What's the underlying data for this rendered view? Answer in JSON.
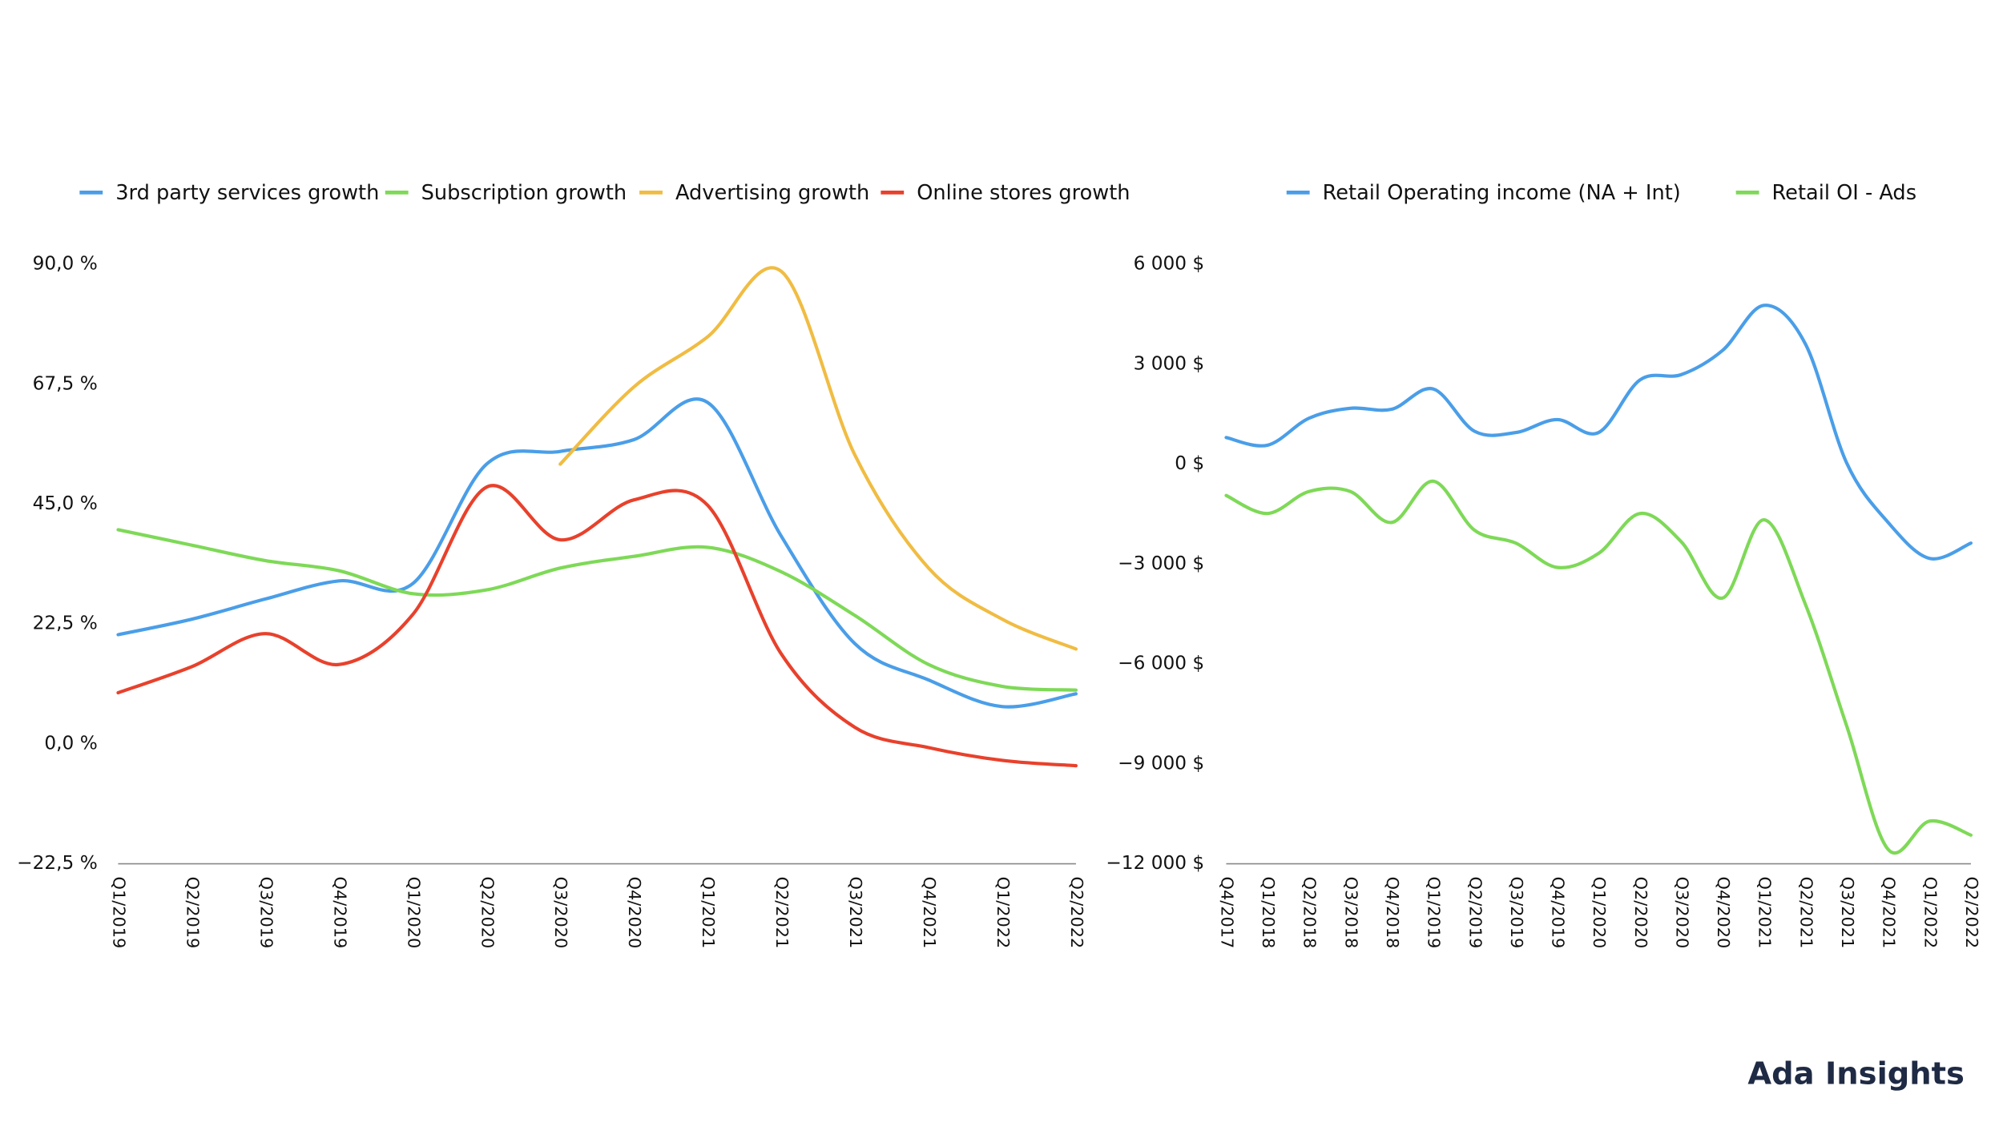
{
  "chart_data": [
    {
      "type": "line",
      "categories": [
        "Q1/2019",
        "Q2/2019",
        "Q3/2019",
        "Q4/2019",
        "Q1/2020",
        "Q2/2020",
        "Q3/2020",
        "Q4/2020",
        "Q1/2021",
        "Q2/2021",
        "Q3/2021",
        "Q4/2021",
        "Q1/2022",
        "Q2/2022"
      ],
      "series": [
        {
          "name": "3rd party services growth",
          "color": "#4a9ee8",
          "values": [
            20.5,
            23.4,
            27.2,
            30.6,
            30.1,
            52.5,
            54.9,
            57.1,
            64.1,
            39.0,
            18.8,
            12.0,
            7.0,
            9.4
          ]
        },
        {
          "name": "Subscription growth",
          "color": "#7ed957",
          "values": [
            40.2,
            37.3,
            34.4,
            32.5,
            28.2,
            28.9,
            33.0,
            35.2,
            36.9,
            32.3,
            24.1,
            14.9,
            10.8,
            10.1
          ]
        },
        {
          "name": "Advertising growth",
          "color": "#f0bc42",
          "values": [
            null,
            null,
            null,
            null,
            null,
            null,
            52.5,
            67.0,
            76.4,
            88.7,
            54.2,
            33.0,
            23.4,
            17.8
          ]
        },
        {
          "name": "Online stores growth",
          "color": "#e8412c",
          "values": [
            9.6,
            14.5,
            20.7,
            14.9,
            24.3,
            48.2,
            38.3,
            45.8,
            44.8,
            16.9,
            3.1,
            -0.7,
            -3.1,
            -4.1
          ]
        }
      ],
      "ylim": [
        -22.5,
        90
      ],
      "yticks": [
        {
          "value": -22.5,
          "label": "−22,5 %"
        },
        {
          "value": 0,
          "label": "0,0 %"
        },
        {
          "value": 22.5,
          "label": "22,5 %"
        },
        {
          "value": 45,
          "label": "45,0 %"
        },
        {
          "value": 67.5,
          "label": "67,5 %"
        },
        {
          "value": 90,
          "label": "90,0 %"
        }
      ],
      "grid": false
    },
    {
      "type": "line",
      "categories": [
        "Q4/2017",
        "Q1/2018",
        "Q2/2018",
        "Q3/2018",
        "Q4/2018",
        "Q1/2019",
        "Q2/2019",
        "Q3/2019",
        "Q4/2019",
        "Q1/2020",
        "Q2/2020",
        "Q3/2020",
        "Q4/2020",
        "Q1/2021",
        "Q2/2021",
        "Q3/2021",
        "Q4/2021",
        "Q1/2022",
        "Q2/2022"
      ],
      "series": [
        {
          "name": "Retail Operating income (NA + Int)",
          "color": "#4a9ee8",
          "values": [
            800,
            570,
            1380,
            1680,
            1650,
            2260,
            990,
            950,
            1340,
            950,
            2530,
            2690,
            3420,
            4770,
            3610,
            30,
            -1750,
            -2830,
            -2370
          ]
        },
        {
          "name": "Retail OI - Ads",
          "color": "#7ed957",
          "values": [
            -940,
            -1480,
            -820,
            -820,
            -1750,
            -510,
            -1980,
            -2370,
            -3100,
            -2680,
            -1480,
            -2330,
            -4020,
            -1670,
            -4210,
            -7870,
            -11570,
            -10720,
            -11140
          ]
        }
      ],
      "ylim": [
        -12000,
        6000
      ],
      "yticks": [
        {
          "value": -12000,
          "label": "−12 000 $"
        },
        {
          "value": -9000,
          "label": "−9 000 $"
        },
        {
          "value": -6000,
          "label": "−6 000 $"
        },
        {
          "value": -3000,
          "label": "−3 000 $"
        },
        {
          "value": 0,
          "label": "0 $"
        },
        {
          "value": 3000,
          "label": "3 000 $"
        },
        {
          "value": 6000,
          "label": "6 000 $"
        }
      ],
      "grid": false
    }
  ],
  "footer": {
    "brand": "Ada Insights"
  }
}
